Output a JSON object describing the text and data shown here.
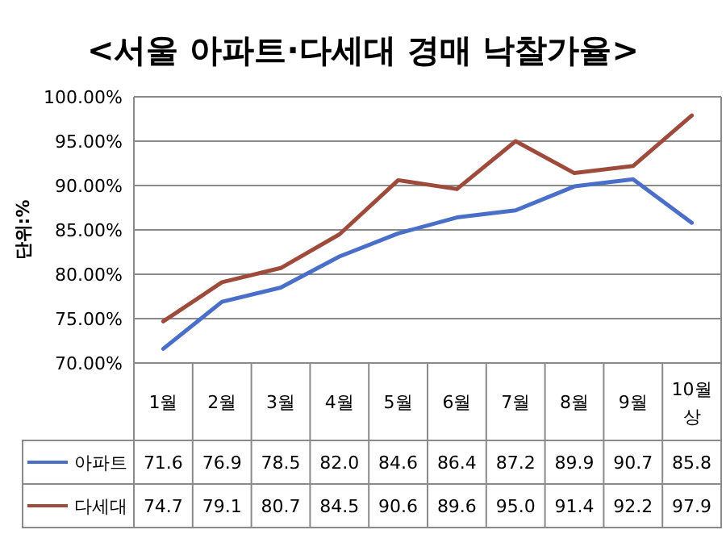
{
  "chart_data": {
    "type": "line",
    "title": "<서울 아파트·다세대 경매 낙찰가율>",
    "ylabel": "단위:%",
    "categories": [
      "1월",
      "2월",
      "3월",
      "4월",
      "5월",
      "6월",
      "7월",
      "8월",
      "9월",
      "10월상"
    ],
    "series": [
      {
        "name": "아파트",
        "color": "#4a6fc9",
        "values": [
          71.6,
          76.9,
          78.5,
          82.0,
          84.6,
          86.4,
          87.2,
          89.9,
          90.7,
          85.8
        ],
        "value_labels": [
          "71.6",
          "76.9",
          "78.5",
          "82.0",
          "84.6",
          "86.4",
          "87.2",
          "89.9",
          "90.7",
          "85.8"
        ]
      },
      {
        "name": "다세대",
        "color": "#9e4b3c",
        "values": [
          74.7,
          79.1,
          80.7,
          84.5,
          90.6,
          89.6,
          95.0,
          91.4,
          92.2,
          97.9
        ],
        "value_labels": [
          "74.7",
          "79.1",
          "80.7",
          "84.5",
          "90.6",
          "89.6",
          "95.0",
          "91.4",
          "92.2",
          "97.9"
        ]
      }
    ],
    "ylim": [
      70,
      100
    ],
    "yticks": [
      {
        "value": 70,
        "label": "70.00%"
      },
      {
        "value": 75,
        "label": "75.00%"
      },
      {
        "value": 80,
        "label": "80.00%"
      },
      {
        "value": 85,
        "label": "85.00%"
      },
      {
        "value": 90,
        "label": "90.00%"
      },
      {
        "value": 95,
        "label": "95.00%"
      },
      {
        "value": 100,
        "label": "100.00%"
      }
    ],
    "grid": "y",
    "legend": "bottom",
    "marker": "none",
    "line_style": "solid"
  }
}
